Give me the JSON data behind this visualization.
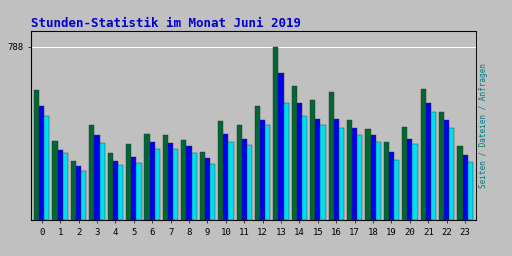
{
  "title": "Stunden-Statistik im Monat Juni 2019",
  "title_color": "#0000cc",
  "ylabel_right": "Seiten / Dateien / Anfragen",
  "ylabel_right_color": "#008080",
  "hours": [
    0,
    1,
    2,
    3,
    4,
    5,
    6,
    7,
    8,
    9,
    10,
    11,
    12,
    13,
    14,
    15,
    16,
    17,
    18,
    19,
    20,
    21,
    22,
    23
  ],
  "background_color": "#c0c0c0",
  "plot_bg_color": "#c0c0c0",
  "colors": [
    "#006633",
    "#0000ee",
    "#00ddee"
  ],
  "green": [
    590,
    360,
    270,
    430,
    305,
    345,
    390,
    385,
    365,
    310,
    450,
    430,
    520,
    788,
    610,
    545,
    580,
    455,
    415,
    355,
    425,
    595,
    490,
    335
  ],
  "blue": [
    520,
    320,
    245,
    385,
    270,
    285,
    355,
    350,
    335,
    280,
    390,
    370,
    455,
    670,
    530,
    460,
    460,
    420,
    385,
    310,
    370,
    530,
    455,
    295
  ],
  "cyan": [
    475,
    305,
    225,
    350,
    250,
    260,
    325,
    325,
    305,
    255,
    355,
    340,
    430,
    530,
    475,
    430,
    420,
    385,
    355,
    275,
    345,
    490,
    420,
    265
  ],
  "ylim": [
    0,
    860
  ],
  "ytick_val": 788,
  "bar_width": 0.28,
  "figsize": [
    5.12,
    2.56
  ],
  "dpi": 100
}
